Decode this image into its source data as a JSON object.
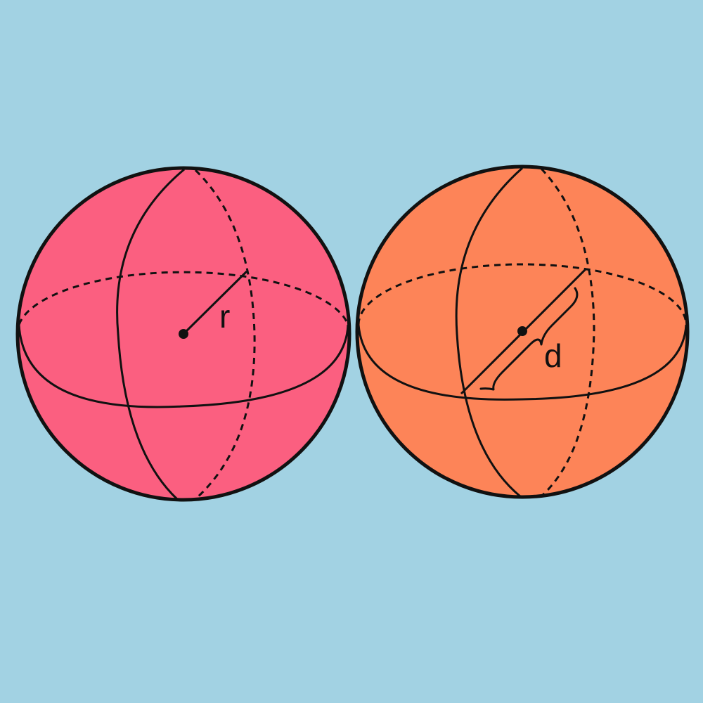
{
  "background_color": "#a2d2e3",
  "outline_color": "#111111",
  "spheres": [
    {
      "name": "radius-sphere",
      "fill_color": "#fb5f80",
      "label": "r"
    },
    {
      "name": "diameter-sphere",
      "fill_color": "#fd8458",
      "label": "d"
    }
  ]
}
